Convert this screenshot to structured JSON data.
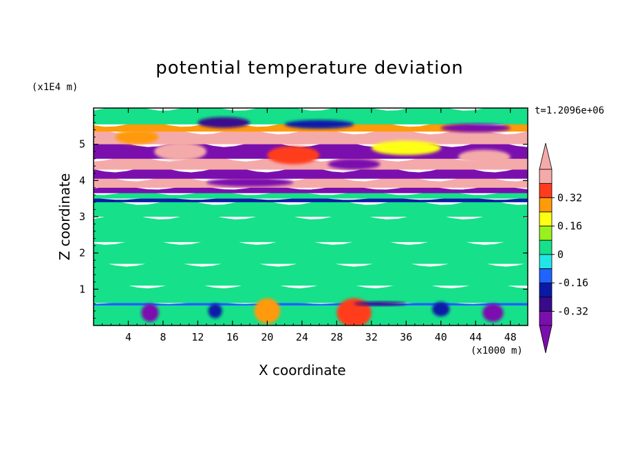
{
  "chart_data": {
    "type": "heatmap",
    "title": "potential temperature deviation",
    "xlabel": "X coordinate",
    "ylabel": "Z coordinate",
    "x_scale_label": "(x1000 m)",
    "z_scale_label": "(x1E4 m)",
    "time_label": "t=1.2096e+06",
    "xlim": [
      0,
      50
    ],
    "ylim": [
      0,
      6
    ],
    "x_ticks": [
      "4",
      "8",
      "12",
      "16",
      "20",
      "24",
      "28",
      "32",
      "36",
      "40",
      "44",
      "48"
    ],
    "x_tick_values": [
      4,
      8,
      12,
      16,
      20,
      24,
      28,
      32,
      36,
      40,
      44,
      48
    ],
    "y_ticks": [
      "1",
      "2",
      "3",
      "4",
      "5"
    ],
    "y_tick_values": [
      1,
      2,
      3,
      4,
      5
    ],
    "colorbar": {
      "labels": [
        "0.32",
        "0.16",
        "0",
        "-0.16",
        "-0.32"
      ],
      "label_values": [
        0.32,
        0.16,
        0,
        -0.16,
        -0.32
      ],
      "levels": [
        -0.4,
        -0.32,
        -0.24,
        -0.16,
        -0.08,
        0,
        0.08,
        0.16,
        0.24,
        0.32,
        0.4
      ],
      "colors": [
        "#7b0fae",
        "#3a0a8c",
        "#0a1aa6",
        "#1f64ff",
        "#22e6e6",
        "#16e08a",
        "#9af01e",
        "#ffff14",
        "#ff9a0a",
        "#ff3c1e",
        "#f5aaaa"
      ],
      "low_extend_color": "#7b0fae",
      "high_extend_color": "#f5aaaa"
    },
    "bands": [
      {
        "z0": 0.0,
        "z1": 0.55,
        "value": 0.0
      },
      {
        "z0": 0.55,
        "z1": 0.62,
        "value": -0.12
      },
      {
        "z0": 0.62,
        "z1": 1.1,
        "value": 0.05
      },
      {
        "z0": 1.1,
        "z1": 1.7,
        "value": 0.0
      },
      {
        "z0": 1.7,
        "z1": 2.3,
        "value": 0.05
      },
      {
        "z0": 2.3,
        "z1": 3.0,
        "value": 0.0
      },
      {
        "z0": 3.0,
        "z1": 3.4,
        "value": 0.05
      },
      {
        "z0": 3.4,
        "z1": 3.5,
        "value": -0.2
      },
      {
        "z0": 3.5,
        "z1": 3.65,
        "value": 0.05
      },
      {
        "z0": 3.65,
        "z1": 3.8,
        "value": -0.35
      },
      {
        "z0": 3.8,
        "z1": 4.05,
        "value": 0.4
      },
      {
        "z0": 4.05,
        "z1": 4.3,
        "value": -0.4
      },
      {
        "z0": 4.3,
        "z1": 4.6,
        "value": 0.4
      },
      {
        "z0": 4.6,
        "z1": 5.0,
        "value": -0.4
      },
      {
        "z0": 5.0,
        "z1": 5.35,
        "value": 0.4
      },
      {
        "z0": 5.35,
        "z1": 5.55,
        "value": 0.3
      },
      {
        "z0": 5.55,
        "z1": 6.0,
        "value": 0.05
      }
    ],
    "blobs": [
      {
        "x": 20,
        "z": 0.4,
        "rx": 1.5,
        "rz": 0.35,
        "value": 0.3
      },
      {
        "x": 30,
        "z": 0.35,
        "rx": 2.0,
        "rz": 0.4,
        "value": 0.32
      },
      {
        "x": 6.5,
        "z": 0.35,
        "rx": 1.0,
        "rz": 0.25,
        "value": -0.35
      },
      {
        "x": 14,
        "z": 0.4,
        "rx": 0.8,
        "rz": 0.2,
        "value": -0.2
      },
      {
        "x": 40,
        "z": 0.45,
        "rx": 1.0,
        "rz": 0.2,
        "value": -0.2
      },
      {
        "x": 46,
        "z": 0.35,
        "rx": 1.2,
        "rz": 0.25,
        "value": -0.35
      },
      {
        "x": 15,
        "z": 5.6,
        "rx": 3.0,
        "rz": 0.15,
        "value": -0.32
      },
      {
        "x": 26,
        "z": 5.55,
        "rx": 4.0,
        "rz": 0.12,
        "value": -0.2
      },
      {
        "x": 44,
        "z": 5.45,
        "rx": 4.0,
        "rz": 0.12,
        "value": -0.35
      },
      {
        "x": 5,
        "z": 5.2,
        "rx": 2.5,
        "rz": 0.2,
        "value": 0.24
      },
      {
        "x": 10,
        "z": 4.8,
        "rx": 3.0,
        "rz": 0.25,
        "value": 0.4
      },
      {
        "x": 23,
        "z": 4.7,
        "rx": 3.0,
        "rz": 0.25,
        "value": 0.32
      },
      {
        "x": 36,
        "z": 4.9,
        "rx": 4.0,
        "rz": 0.2,
        "value": 0.16
      },
      {
        "x": 45,
        "z": 4.65,
        "rx": 3.0,
        "rz": 0.2,
        "value": 0.4
      },
      {
        "x": 30,
        "z": 4.45,
        "rx": 3.0,
        "rz": 0.15,
        "value": -0.4
      },
      {
        "x": 18,
        "z": 3.95,
        "rx": 5.0,
        "rz": 0.12,
        "value": -0.4
      },
      {
        "x": 33,
        "z": 0.6,
        "rx": 3.0,
        "rz": 0.06,
        "value": -0.3
      }
    ]
  }
}
